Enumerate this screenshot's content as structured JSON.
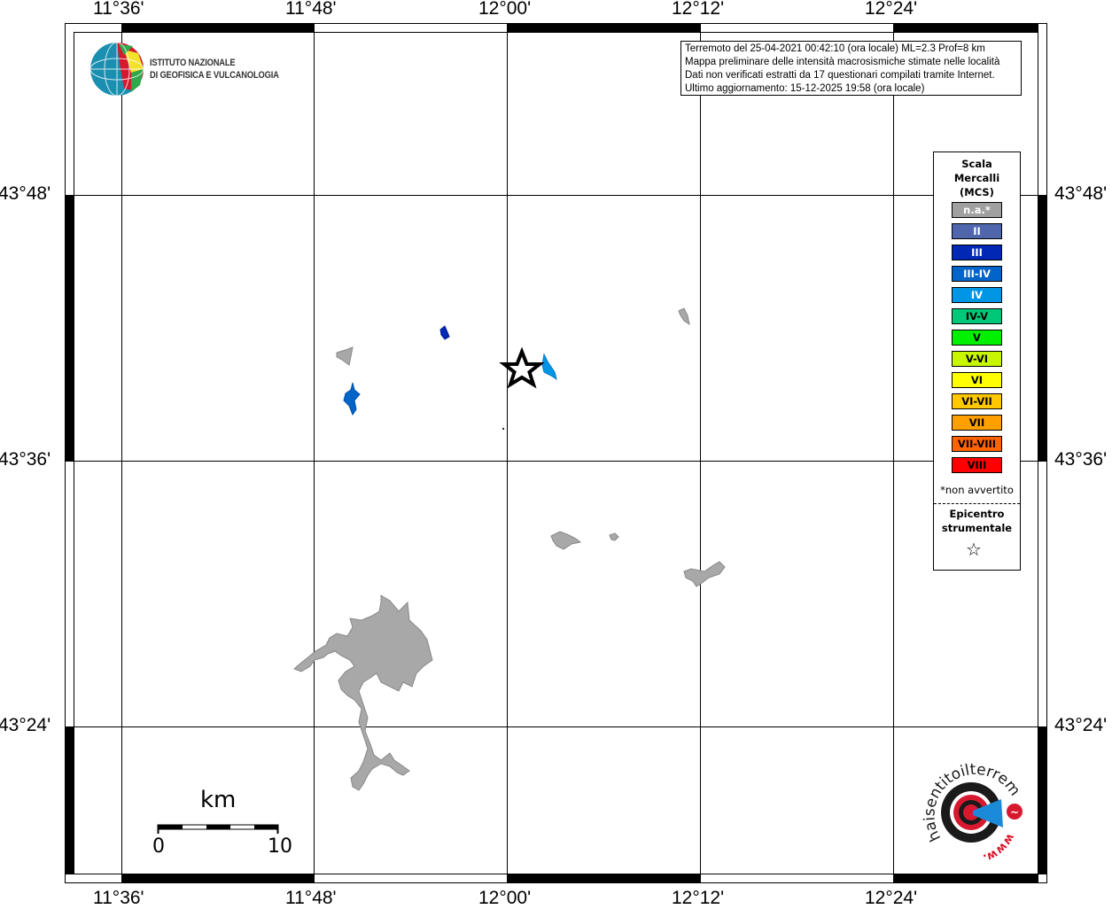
{
  "map": {
    "lon_labels": [
      "11°36'",
      "11°48'",
      "12°00'",
      "12°12'",
      "12°24'"
    ],
    "lat_labels": [
      "43°48'",
      "43°36'",
      "43°24'"
    ],
    "epicenter": {
      "symbol": "star",
      "color": "#000000"
    }
  },
  "info_box": {
    "lines": [
      "Terremoto del 25-04-2021 00:42:10 (ora locale) ML=2.3 Prof=8 km",
      "Mappa preliminare delle intensità macrosismiche stimate nelle località",
      "Dati non verificati estratti da 17 questionari compilati tramite Internet.",
      "Ultimo aggiornamento: 15-12-2025 19:58 (ora locale)"
    ]
  },
  "legend": {
    "title_lines": [
      "Scala",
      "Mercalli",
      "(MCS)"
    ],
    "items": [
      {
        "label": "n.a.*",
        "color": "#a0a0a0",
        "text_color": "#ffffff"
      },
      {
        "label": "II",
        "color": "#4f66ad",
        "text_color": "#ffffff"
      },
      {
        "label": "III",
        "color": "#0028b4",
        "text_color": "#ffffff"
      },
      {
        "label": "III-IV",
        "color": "#0064c8",
        "text_color": "#ffffff"
      },
      {
        "label": "IV",
        "color": "#0096e6",
        "text_color": "#ffffff"
      },
      {
        "label": "IV-V",
        "color": "#00c878",
        "text_color": "#000000"
      },
      {
        "label": "V",
        "color": "#00f000",
        "text_color": "#000000"
      },
      {
        "label": "V-VI",
        "color": "#c8f500",
        "text_color": "#000000"
      },
      {
        "label": "VI",
        "color": "#ffff00",
        "text_color": "#000000"
      },
      {
        "label": "VI-VII",
        "color": "#ffc800",
        "text_color": "#000000"
      },
      {
        "label": "VII",
        "color": "#ffa000",
        "text_color": "#000000"
      },
      {
        "label": "VII-VIII",
        "color": "#ff6400",
        "text_color": "#000000"
      },
      {
        "label": "VIII",
        "color": "#ff0000",
        "text_color": "#000000"
      }
    ],
    "note": "*non avvertito",
    "epicenter_label_lines": [
      "Epicentro",
      "strumentale"
    ],
    "epicenter_symbol": "☆"
  },
  "scale_bar": {
    "unit": "km",
    "start": "0",
    "end": "10"
  },
  "logos": {
    "ingv": "ISTITUTO NAZIONALE DI GEOFISICA E VULCANOLOGIA",
    "ingv_lines": [
      "ISTITUTO NAZIONALE",
      "DI GEOFISICA E VULCANOLOGIA"
    ],
    "hsit": "www.haisentitoilterremoto.it"
  }
}
